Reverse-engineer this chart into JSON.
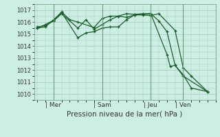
{
  "xlabel": "Pression niveau de la mer( hPa )",
  "bg_color": "#cceee4",
  "grid_color": "#a0c8b8",
  "line_color": "#1a5c2a",
  "vline_color": "#6b9e7a",
  "ylim": [
    1009.5,
    1017.5
  ],
  "yticks": [
    1010,
    1011,
    1012,
    1013,
    1014,
    1015,
    1016,
    1017
  ],
  "day_labels": [
    "| Mer",
    "| Sam",
    "| Jeu",
    "| Ven"
  ],
  "day_positions": [
    1,
    4,
    7,
    9
  ],
  "xlim": [
    -0.2,
    11.0
  ],
  "series1_x": [
    0.0,
    0.5,
    1.0,
    1.5,
    2.5,
    3.0,
    3.5,
    4.0,
    4.5,
    5.0,
    5.5,
    6.0,
    6.5,
    7.0,
    7.5,
    8.5,
    9.0,
    9.5,
    10.5
  ],
  "series1_y": [
    1015.5,
    1015.6,
    1016.2,
    1016.8,
    1014.7,
    1015.1,
    1015.2,
    1015.5,
    1015.6,
    1015.6,
    1016.2,
    1016.6,
    1016.6,
    1016.55,
    1016.7,
    1015.3,
    1012.2,
    1011.5,
    1010.2
  ],
  "series2_x": [
    0.0,
    0.5,
    1.0,
    1.5,
    2.5,
    3.0,
    3.5,
    4.0,
    4.5,
    5.0,
    5.5,
    6.0,
    6.5,
    7.0,
    7.5,
    8.0,
    8.5,
    9.0,
    10.5
  ],
  "series2_y": [
    1015.6,
    1015.7,
    1016.1,
    1016.7,
    1015.5,
    1016.2,
    1015.4,
    1015.8,
    1016.2,
    1016.5,
    1016.4,
    1016.6,
    1016.65,
    1016.7,
    1016.1,
    1015.2,
    1012.4,
    1011.5,
    1010.2
  ],
  "series3_x": [
    0.0,
    0.5,
    1.0,
    1.5,
    2.0,
    2.5,
    3.5,
    4.0,
    4.5,
    5.0,
    5.5,
    6.0,
    6.5,
    7.0,
    8.0,
    8.2,
    8.5,
    9.0,
    9.5,
    10.5
  ],
  "series3_y": [
    1015.5,
    1015.8,
    1016.15,
    1016.85,
    1016.2,
    1016.0,
    1015.55,
    1016.3,
    1016.5,
    1016.5,
    1016.7,
    1016.65,
    1016.7,
    1016.7,
    1013.3,
    1012.3,
    1012.4,
    1011.6,
    1010.5,
    1010.2
  ],
  "vline_positions": [
    1,
    4,
    7,
    9
  ],
  "xlabel_fontsize": 7.5,
  "ytick_fontsize": 6,
  "xtick_fontsize": 6.5
}
